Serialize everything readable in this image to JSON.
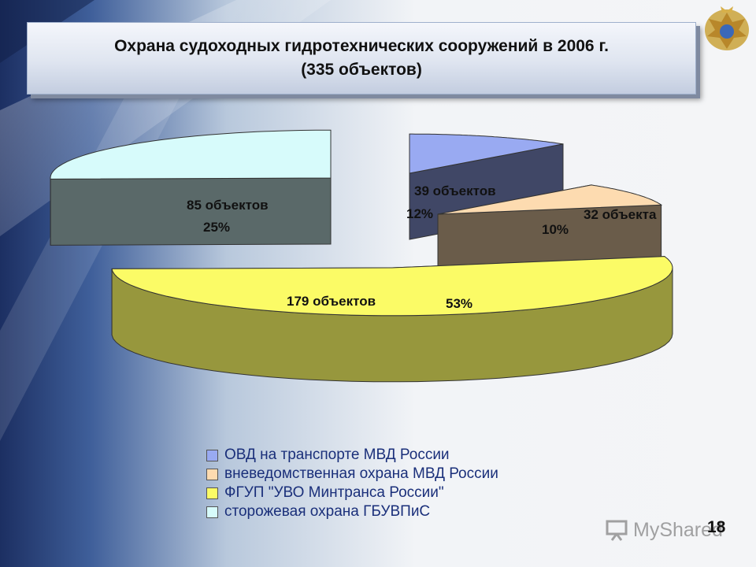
{
  "title": {
    "line1": "Охрана судоходных гидротехнических сооружений в 2006 г.",
    "line2": "(335 объектов)"
  },
  "chart_data": {
    "type": "pie",
    "style": "3d-exploded",
    "title": "Охрана судоходных гидротехнических сооружений в 2006 г. (335 объектов)",
    "total": 335,
    "slices": [
      {
        "name": "ОВД на транспорте МВД России",
        "value": 39,
        "label": "39 объектов",
        "percent": "12%",
        "color": "#99aaf2"
      },
      {
        "name": "вневедомственная охрана МВД России",
        "value": 32,
        "label": "32 объекта",
        "percent": "10%",
        "color": "#fddbb0"
      },
      {
        "name": "ФГУП \"УВО Минтранса России\"",
        "value": 179,
        "label": "179 объектов",
        "percent": "53%",
        "color": "#fbfb66"
      },
      {
        "name": "сторожевая охрана ГБУВПиС",
        "value": 85,
        "label": "85 объектов",
        "percent": "25%",
        "color": "#d7fbfb"
      }
    ],
    "legend_position": "bottom"
  },
  "legend": {
    "items": [
      {
        "label": "ОВД на транспорте МВД России",
        "color": "#99aaf2"
      },
      {
        "label": "вневедомственная охрана МВД России",
        "color": "#fddbb0"
      },
      {
        "label": "ФГУП \"УВО Минтранса России\"",
        "color": "#fbfb66"
      },
      {
        "label": "сторожевая охрана ГБУВПиС",
        "color": "#d7fbfb"
      }
    ]
  },
  "watermark": {
    "text": "MyShared"
  },
  "slide_number": "18",
  "icons": {
    "emblem": "double-headed-eagle-emblem-icon",
    "watermark": "presentation-board-icon"
  }
}
